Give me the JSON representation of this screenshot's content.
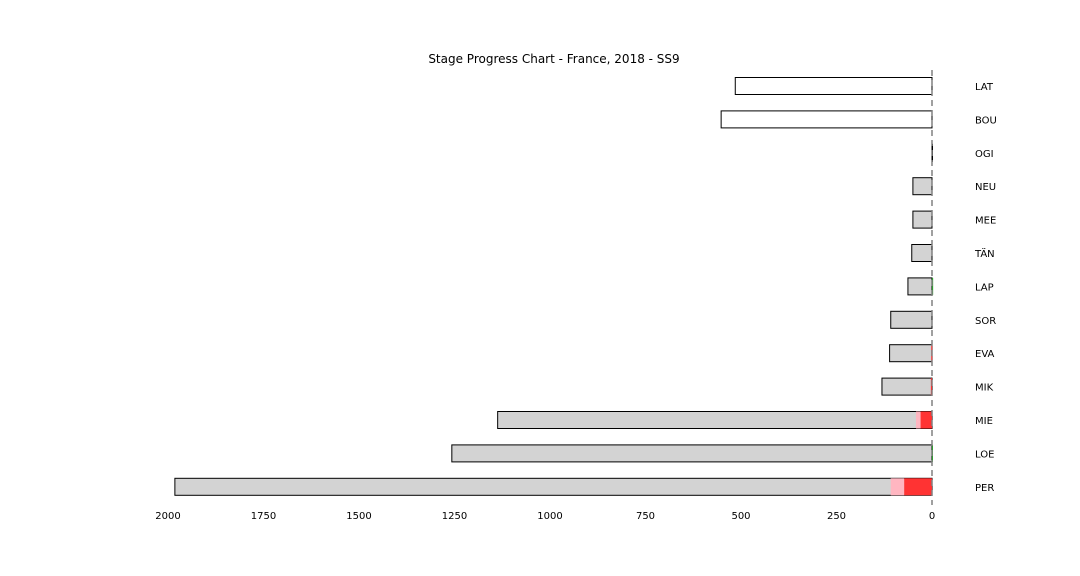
{
  "chart_data": {
    "type": "bar",
    "orientation": "horizontal",
    "title": "Stage Progress Chart - France, 2018 - SS9",
    "xlabel": "",
    "ylabel": "",
    "x_inverted": true,
    "xlim": [
      2000,
      0
    ],
    "x_ticks": [
      2000,
      1750,
      1500,
      1250,
      1000,
      750,
      500,
      250,
      0
    ],
    "grid": false,
    "legend": "none",
    "reference_line": {
      "x": 0,
      "style": "dashed",
      "color": "#808080"
    },
    "categories": [
      "LAT",
      "BOU",
      "OGI",
      "NEU",
      "MEE",
      "TÄN",
      "LAP",
      "SOR",
      "EVA",
      "MIK",
      "MIE",
      "LOE",
      "PER"
    ],
    "series": [
      {
        "values": [
          515,
          552,
          0,
          50,
          50,
          53,
          63,
          108,
          111,
          131,
          1137,
          1257,
          1982
        ],
        "color": "#ffffff"
      }
    ],
    "cumulative_fill": [
      0,
      0,
      0,
      50,
      50,
      53,
      63,
      108,
      111,
      131,
      1137,
      1257,
      1982
    ],
    "segments": {
      "MIE": [
        {
          "from": 0,
          "to": 30,
          "color": "#ff3333",
          "band": "full"
        },
        {
          "from": 30,
          "to": 42,
          "color": "#ffb6c1",
          "band": "full"
        }
      ],
      "PER": [
        {
          "from": 0,
          "to": 73,
          "color": "#ff3333",
          "band": "full"
        },
        {
          "from": 73,
          "to": 108,
          "color": "#ffb6c1",
          "band": "full"
        }
      ],
      "EVA": [
        {
          "from": 0,
          "to": 2,
          "color": "#ff3333",
          "band": "full"
        }
      ],
      "MIK": [
        {
          "from": 0,
          "to": 3,
          "color": "#ff3333",
          "band": "full"
        }
      ],
      "LAP": [
        {
          "from": -3,
          "to": 0,
          "color": "#2ca02c",
          "band": "full"
        }
      ],
      "LOE": [
        {
          "from": -2,
          "to": 0,
          "color": "#2ca02c",
          "band": "full"
        }
      ]
    },
    "colors": {
      "fill": "#d3d3d3",
      "edge": "#000000",
      "gain": "#2ca02c",
      "loss": "#ff3333",
      "loss_light": "#ffb6c1",
      "refline": "#808080"
    }
  }
}
